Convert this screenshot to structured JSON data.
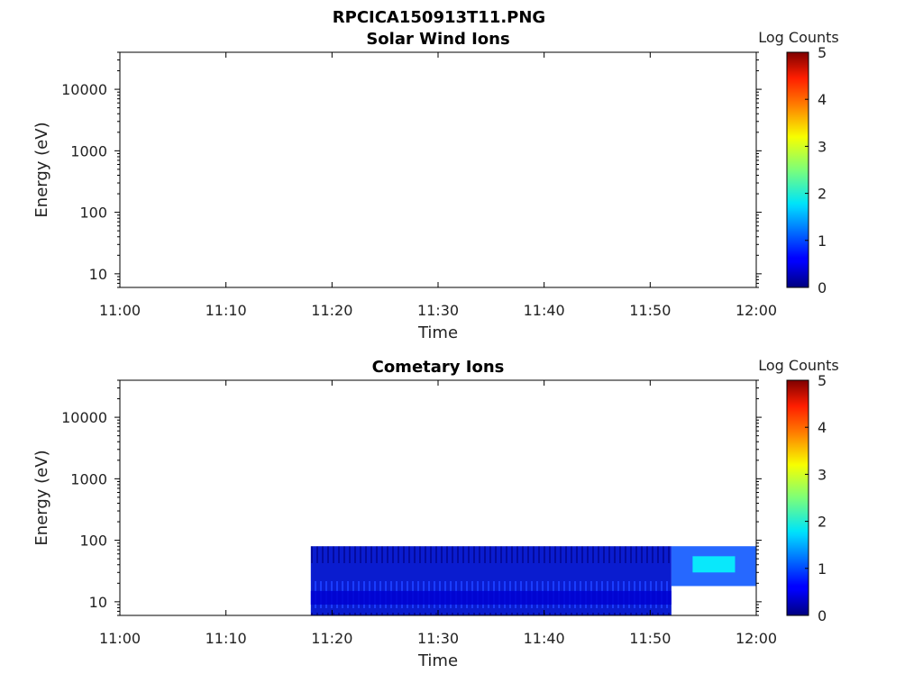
{
  "figure": {
    "title": "RPCICA150913T11.PNG"
  },
  "colors": {
    "axis": "#000000",
    "text": "#222222",
    "colormap": "jet"
  },
  "chart_data": [
    {
      "type": "heatmap",
      "title": "Solar Wind Ions",
      "xlabel": "Time",
      "ylabel": "Energy (eV)",
      "x_ticks": [
        "11:00",
        "11:10",
        "11:20",
        "11:30",
        "11:40",
        "11:50",
        "12:00"
      ],
      "xlim": [
        "11:00",
        "12:00"
      ],
      "y_scale": "log",
      "y_ticks": [
        10,
        100,
        1000,
        10000
      ],
      "y_tick_labels": [
        "10",
        "100",
        "1000",
        "10000"
      ],
      "ylim": [
        6,
        40000
      ],
      "colorbar": {
        "label": "Log Counts",
        "min": 0,
        "max": 5,
        "ticks": [
          "0",
          "1",
          "2",
          "3",
          "4",
          "5"
        ]
      },
      "regions": []
    },
    {
      "type": "heatmap",
      "title": "Cometary Ions",
      "xlabel": "Time",
      "ylabel": "Energy (eV)",
      "x_ticks": [
        "11:00",
        "11:10",
        "11:20",
        "11:30",
        "11:40",
        "11:50",
        "12:00"
      ],
      "xlim": [
        "11:00",
        "12:00"
      ],
      "y_scale": "log",
      "y_ticks": [
        10,
        100,
        1000,
        10000
      ],
      "y_tick_labels": [
        "10",
        "100",
        "1000",
        "10000"
      ],
      "ylim": [
        6,
        40000
      ],
      "colorbar": {
        "label": "Log Counts",
        "min": 0,
        "max": 5,
        "ticks": [
          "0",
          "1",
          "2",
          "3",
          "4",
          "5"
        ]
      },
      "regions": [
        {
          "t_start": "11:18",
          "t_end": "11:52",
          "e_min": 6,
          "e_max": 80,
          "log_counts": 0.8
        },
        {
          "t_start": "11:18",
          "t_end": "11:52",
          "e_min": 9,
          "e_max": 15,
          "log_counts": 0.4
        },
        {
          "t_start": "11:52",
          "t_end": "12:00",
          "e_min": 18,
          "e_max": 80,
          "log_counts": 1.0
        },
        {
          "t_start": "11:54",
          "t_end": "11:58",
          "e_min": 30,
          "e_max": 55,
          "log_counts": 1.9
        }
      ]
    }
  ]
}
